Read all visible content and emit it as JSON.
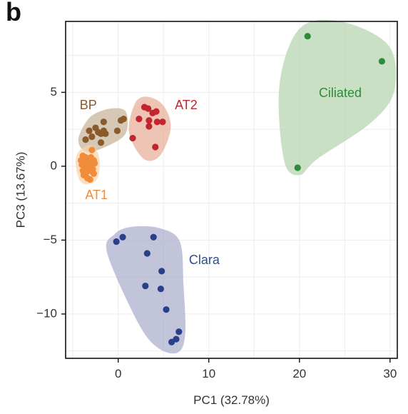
{
  "panel_label": "b",
  "chart_data": {
    "type": "scatter",
    "xlabel": "PC1 (32.78%)",
    "ylabel": "PC3 (13.67%)",
    "xlim": [
      -5.8,
      30.8
    ],
    "ylim": [
      -13.0,
      9.8
    ],
    "xticks": [
      0,
      10,
      20,
      30
    ],
    "yticks": [
      -10,
      -5,
      0,
      5
    ],
    "xtick_labels": [
      "0",
      "10",
      "20",
      "30"
    ],
    "ytick_labels": [
      "−10",
      "−5",
      "0",
      "5"
    ],
    "grid": true,
    "series": [
      {
        "name": "BP",
        "color": "#8a5a2b",
        "hull_color": "#c9b59d",
        "points": [
          [
            -3.6,
            1.8
          ],
          [
            -3.2,
            2.4
          ],
          [
            -2.9,
            2.0
          ],
          [
            -2.5,
            2.6
          ],
          [
            -2.2,
            2.3
          ],
          [
            -1.9,
            2.2
          ],
          [
            -1.6,
            2.4
          ],
          [
            -1.4,
            2.2
          ],
          [
            -1.9,
            1.6
          ],
          [
            -1.6,
            3.0
          ],
          [
            -0.1,
            2.4
          ],
          [
            0.3,
            3.1
          ],
          [
            0.6,
            3.2
          ]
        ],
        "hull": [
          [
            -4.4,
            1.8
          ],
          [
            -3.3,
            3.2
          ],
          [
            -1.6,
            3.8
          ],
          [
            0.3,
            3.9
          ],
          [
            1.0,
            3.4
          ],
          [
            0.7,
            2.1
          ],
          [
            -1.8,
            1.2
          ],
          [
            -3.6,
            1.0
          ]
        ]
      },
      {
        "name": "AT2",
        "color": "#c0262d",
        "hull_color": "#e8b09b",
        "points": [
          [
            2.9,
            4.0
          ],
          [
            3.3,
            3.9
          ],
          [
            3.8,
            3.6
          ],
          [
            4.2,
            3.7
          ],
          [
            2.3,
            3.2
          ],
          [
            3.4,
            3.1
          ],
          [
            4.3,
            3.0
          ],
          [
            4.9,
            3.0
          ],
          [
            3.4,
            2.7
          ],
          [
            1.6,
            1.9
          ],
          [
            4.1,
            1.3
          ]
        ],
        "hull": [
          [
            1.2,
            2.3
          ],
          [
            1.9,
            4.3
          ],
          [
            3.3,
            4.7
          ],
          [
            5.0,
            4.1
          ],
          [
            5.8,
            2.6
          ],
          [
            4.6,
            0.7
          ],
          [
            2.8,
            0.5
          ]
        ]
      },
      {
        "name": "AT1",
        "color": "#f08c3a",
        "hull_color": "#f8d4ab",
        "points": [
          [
            -3.9,
            0.7
          ],
          [
            -3.6,
            0.6
          ],
          [
            -3.3,
            0.5
          ],
          [
            -3.0,
            0.6
          ],
          [
            -2.7,
            0.4
          ],
          [
            -4.1,
            0.4
          ],
          [
            -3.8,
            0.3
          ],
          [
            -3.4,
            0.2
          ],
          [
            -2.9,
            0.1
          ],
          [
            -2.6,
            0.2
          ],
          [
            -4.0,
            0.1
          ],
          [
            -3.6,
            0.0
          ],
          [
            -3.2,
            -0.1
          ],
          [
            -2.8,
            -0.2
          ],
          [
            -3.9,
            -0.3
          ],
          [
            -3.5,
            -0.4
          ],
          [
            -3.1,
            -0.3
          ],
          [
            -2.7,
            -0.5
          ],
          [
            -3.8,
            -0.6
          ],
          [
            -3.4,
            -0.8
          ],
          [
            -2.9,
            1.1
          ],
          [
            -3.1,
            -0.9
          ]
        ],
        "hull": [
          [
            -4.7,
            0.3
          ],
          [
            -4.2,
            1.1
          ],
          [
            -2.9,
            1.4
          ],
          [
            -2.1,
            0.6
          ],
          [
            -2.2,
            -0.7
          ],
          [
            -3.1,
            -1.2
          ],
          [
            -4.2,
            -1.0
          ]
        ]
      },
      {
        "name": "Ciliated",
        "color": "#2e8b3a",
        "hull_color": "#b8d6b2",
        "points": [
          [
            20.9,
            8.8
          ],
          [
            29.1,
            7.1
          ],
          [
            19.8,
            -0.1
          ]
        ],
        "hull": [
          [
            18.3,
            0.4
          ],
          [
            17.8,
            5.5
          ],
          [
            20.0,
            9.3
          ],
          [
            24.5,
            9.8
          ],
          [
            29.8,
            8.2
          ],
          [
            30.5,
            5.2
          ],
          [
            28.0,
            3.0
          ],
          [
            22.0,
            0.5
          ],
          [
            20.0,
            -0.6
          ]
        ]
      },
      {
        "name": "Clara",
        "color": "#2a3f8a",
        "hull_color": "#aeb0ce",
        "points": [
          [
            0.5,
            -4.8
          ],
          [
            -0.2,
            -5.1
          ],
          [
            3.9,
            -4.8
          ],
          [
            3.2,
            -5.9
          ],
          [
            4.8,
            -7.1
          ],
          [
            3.0,
            -8.1
          ],
          [
            4.7,
            -8.3
          ],
          [
            5.3,
            -9.7
          ],
          [
            6.7,
            -11.2
          ],
          [
            6.4,
            -11.7
          ],
          [
            5.9,
            -11.9
          ]
        ],
        "hull": [
          [
            -1.2,
            -5.9
          ],
          [
            -0.4,
            -4.6
          ],
          [
            1.5,
            -4.1
          ],
          [
            4.6,
            -4.2
          ],
          [
            6.8,
            -5.1
          ],
          [
            7.2,
            -8.0
          ],
          [
            7.4,
            -11.3
          ],
          [
            6.6,
            -12.6
          ],
          [
            4.4,
            -12.3
          ],
          [
            2.2,
            -10.6
          ]
        ]
      }
    ],
    "labels": [
      {
        "text": "BP",
        "x": -3.3,
        "y": 4.1,
        "color": "#8a5a2b"
      },
      {
        "text": "AT2",
        "x": 7.5,
        "y": 4.1,
        "color": "#c0262d"
      },
      {
        "text": "AT1",
        "x": -2.4,
        "y": -2.0,
        "color": "#f08c3a"
      },
      {
        "text": "Ciliated",
        "x": 24.5,
        "y": 4.9,
        "color": "#2e8b3a"
      },
      {
        "text": "Clara",
        "x": 9.5,
        "y": -6.4,
        "color": "#2a4f8a"
      }
    ]
  }
}
